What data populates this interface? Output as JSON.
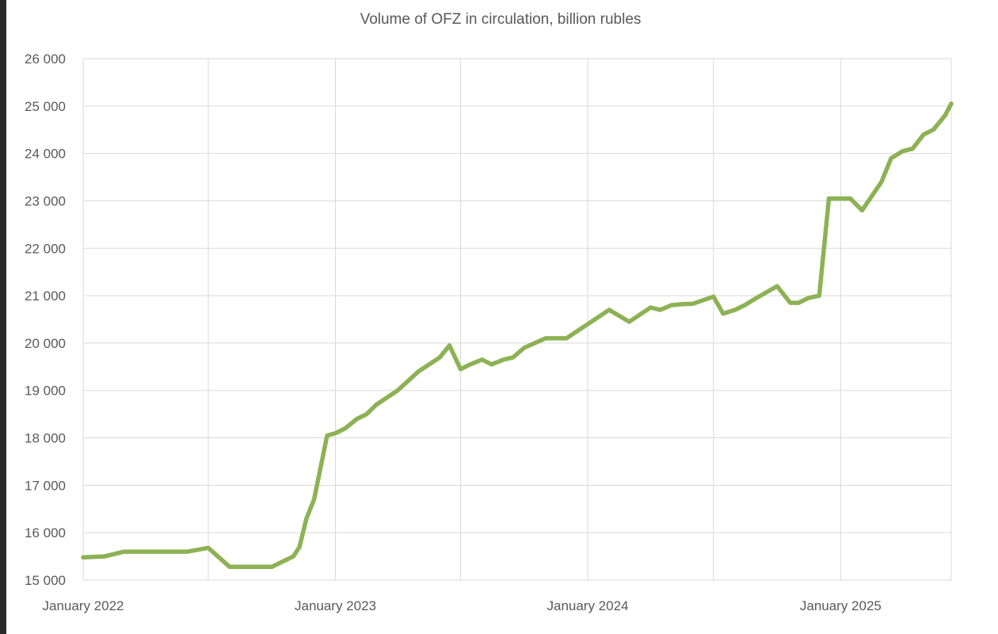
{
  "chart_data": {
    "type": "line",
    "title": "Volume of OFZ in circulation, billion rubles",
    "xlabel": "",
    "ylabel": "",
    "x_range": [
      "2022-01-01",
      "2025-06-10"
    ],
    "x_ticks": [
      "January 2022",
      "January 2023",
      "January 2024",
      "January 2025"
    ],
    "x_tick_dates": [
      "2022-01-01",
      "2023-01-01",
      "2024-01-01",
      "2025-01-01"
    ],
    "ylim": [
      15000,
      26000
    ],
    "y_ticks": [
      15000,
      16000,
      17000,
      18000,
      19000,
      20000,
      21000,
      22000,
      23000,
      24000,
      25000,
      26000
    ],
    "y_tick_labels": [
      "15 000",
      "16 000",
      "17 000",
      "18 000",
      "19 000",
      "20 000",
      "21 000",
      "22 000",
      "23 000",
      "24 000",
      "25 000",
      "26 000"
    ],
    "grid": true,
    "legend": "none",
    "line_color": "#8db255",
    "series": [
      {
        "x": [
          "2022-01-01",
          "2022-02-01",
          "2022-03-01",
          "2022-04-01",
          "2022-05-01",
          "2022-06-01",
          "2022-07-01",
          "2022-08-01",
          "2022-09-01",
          "2022-10-01",
          "2022-10-15",
          "2022-11-01",
          "2022-11-10",
          "2022-11-20",
          "2022-12-01",
          "2022-12-20",
          "2023-01-01",
          "2023-01-15",
          "2023-02-01",
          "2023-02-15",
          "2023-03-01",
          "2023-04-01",
          "2023-05-01",
          "2023-06-01",
          "2023-06-15",
          "2023-07-01",
          "2023-07-15",
          "2023-08-01",
          "2023-08-15",
          "2023-09-01",
          "2023-09-15",
          "2023-10-01",
          "2023-11-01",
          "2023-12-01",
          "2024-01-01",
          "2024-02-01",
          "2024-03-01",
          "2024-04-01",
          "2024-04-15",
          "2024-05-01",
          "2024-05-15",
          "2024-06-01",
          "2024-07-01",
          "2024-07-15",
          "2024-08-01",
          "2024-08-15",
          "2024-09-01",
          "2024-10-01",
          "2024-10-20",
          "2024-11-01",
          "2024-11-15",
          "2024-12-01",
          "2024-12-15",
          "2025-01-01",
          "2025-01-15",
          "2025-02-01",
          "2025-03-01",
          "2025-03-15",
          "2025-04-01",
          "2025-04-15",
          "2025-05-01",
          "2025-05-15",
          "2025-06-01",
          "2025-06-10"
        ],
        "values": [
          15480,
          15500,
          15600,
          15600,
          15600,
          15600,
          15680,
          15280,
          15280,
          15280,
          15380,
          15500,
          15700,
          16300,
          16700,
          18050,
          18100,
          18200,
          18400,
          18500,
          18700,
          19000,
          19400,
          19700,
          19950,
          19450,
          19550,
          19650,
          19550,
          19650,
          19700,
          19900,
          20100,
          20100,
          20400,
          20700,
          20450,
          20750,
          20700,
          20800,
          20820,
          20830,
          20980,
          20620,
          20700,
          20800,
          20950,
          21200,
          20850,
          20850,
          20950,
          21000,
          23050,
          23050,
          23050,
          22800,
          23400,
          23900,
          24050,
          24100,
          24400,
          24500,
          24800,
          25050
        ]
      }
    ]
  }
}
